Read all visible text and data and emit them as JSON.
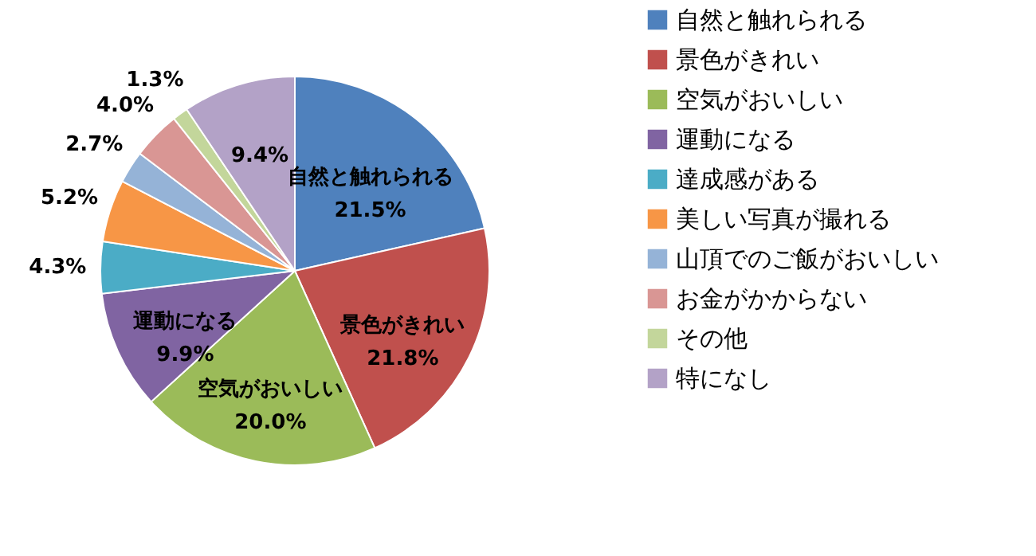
{
  "chart_data": {
    "type": "pie",
    "categories": [
      "自然と触れられる",
      "景色がきれい",
      "空気がおいしい",
      "運動になる",
      "達成感がある",
      "美しい写真が撮れる",
      "山頂でのご飯がおいしい",
      "お金がかからない",
      "その他",
      "特になし"
    ],
    "values": [
      21.5,
      21.8,
      20.0,
      9.9,
      4.3,
      5.2,
      2.7,
      4.0,
      1.3,
      9.4
    ],
    "colors": [
      "#4f81bd",
      "#c0504d",
      "#9bbb59",
      "#8064a2",
      "#4bacc6",
      "#f79646",
      "#95b3d7",
      "#d99694",
      "#c3d69b",
      "#b3a2c7"
    ],
    "value_labels": [
      "自然と触れられる\n21.5%",
      "景色がきれい\n21.8%",
      "空気がおいしい\n20.0%",
      "運動になる\n9.9%",
      "4.3%",
      "5.2%",
      "2.7%",
      "4.0%",
      "1.3%",
      "9.4%"
    ],
    "legend": "right"
  }
}
